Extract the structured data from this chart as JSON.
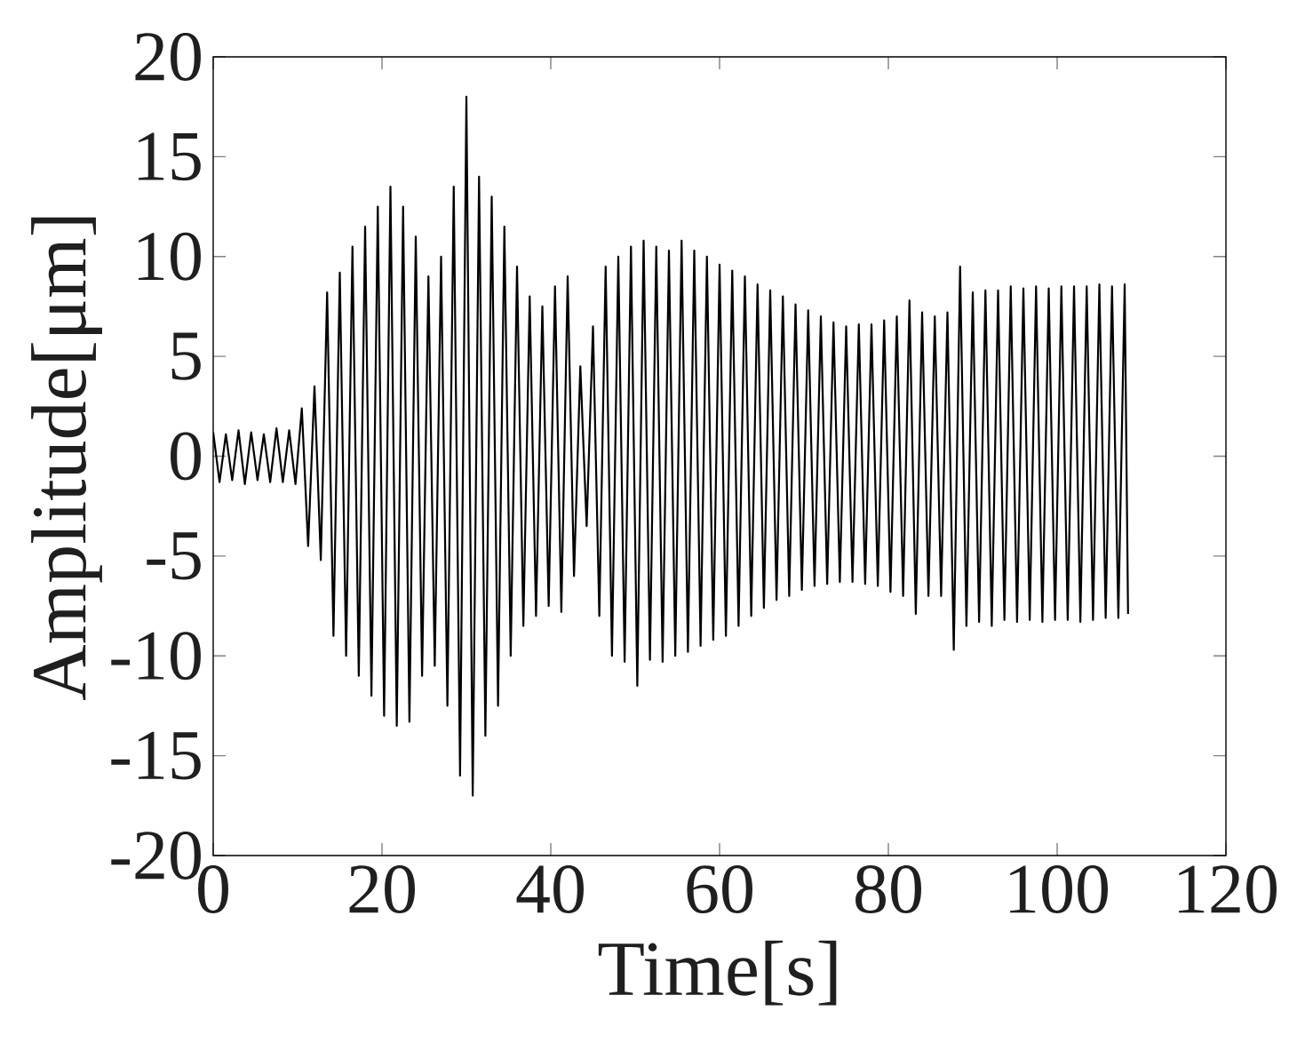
{
  "chart_data": {
    "type": "line",
    "xlabel": "Time[s]",
    "ylabel": "Amplitude[μm]",
    "xlim": [
      0,
      120
    ],
    "ylim": [
      -20,
      20
    ],
    "xticks": [
      0,
      20,
      40,
      60,
      80,
      100,
      120
    ],
    "yticks": [
      -20,
      -15,
      -10,
      -5,
      0,
      5,
      10,
      15,
      20
    ],
    "line_style": "solid",
    "series": [
      {
        "color": "#000000",
        "x": [
          0,
          0.75,
          1.5,
          2.25,
          3,
          3.75,
          4.5,
          5.25,
          6,
          6.75,
          7.5,
          8.25,
          9,
          9.75,
          10.5,
          11.25,
          12,
          12.75,
          13.5,
          14.25,
          15,
          15.75,
          16.5,
          17.25,
          18,
          18.75,
          19.5,
          20.25,
          21,
          21.75,
          22.5,
          23.25,
          24,
          24.75,
          25.5,
          26.25,
          27,
          27.75,
          28.5,
          29.25,
          30,
          30.75,
          31.5,
          32.25,
          33,
          33.75,
          34.5,
          35.25,
          36,
          36.75,
          37.5,
          38.25,
          39,
          39.75,
          40.5,
          41.25,
          42,
          42.75,
          43.5,
          44.25,
          45,
          45.75,
          46.5,
          47.25,
          48,
          48.75,
          49.5,
          50.25,
          51,
          51.75,
          52.5,
          53.25,
          54,
          54.75,
          55.5,
          56.25,
          57,
          57.75,
          58.5,
          59.25,
          60,
          60.75,
          61.5,
          62.25,
          63,
          63.75,
          64.5,
          65.25,
          66,
          66.75,
          67.5,
          68.25,
          69,
          69.75,
          70.5,
          71.25,
          72,
          72.75,
          73.5,
          74.25,
          75,
          75.75,
          76.5,
          77.25,
          78,
          78.75,
          79.5,
          80.25,
          81,
          81.75,
          82.5,
          83.25,
          84,
          84.75,
          85.5,
          86.25,
          87,
          87.75,
          88.5,
          89.25,
          90,
          90.75,
          91.5,
          92.25,
          93,
          93.75,
          94.5,
          95.25,
          96,
          96.75,
          97.5,
          98.25,
          99,
          99.75,
          100.5,
          101.25,
          102,
          102.75,
          103.5,
          104.25,
          105,
          105.75,
          106.5,
          107.25,
          108,
          108.4
        ],
        "values": [
          1.2,
          -1.3,
          1.1,
          -1.2,
          1.3,
          -1.4,
          1.2,
          -1.2,
          1.1,
          -1.3,
          1.4,
          -1.3,
          1.3,
          -1.4,
          2.4,
          -4.5,
          3.5,
          -5.2,
          8.2,
          -9.0,
          9.2,
          -10,
          10.5,
          -11,
          11.5,
          -12,
          12.5,
          -13,
          13.5,
          -13.5,
          12.5,
          -13.3,
          11,
          -11,
          9,
          -10.5,
          10,
          -12.5,
          13.5,
          -16,
          18,
          -17,
          14,
          -14,
          13,
          -12.5,
          11.5,
          -10,
          9.5,
          -8.5,
          8,
          -8,
          7.5,
          -7.5,
          8.5,
          -7.8,
          9,
          -6,
          4.5,
          -3.5,
          6.5,
          -8,
          9.5,
          -10,
          10,
          -10.3,
          10.5,
          -11.5,
          10.8,
          -10.2,
          10.5,
          -10.3,
          10.3,
          -10,
          10.8,
          -9.8,
          10.3,
          -9.5,
          10,
          -9.2,
          9.6,
          -9,
          9.3,
          -8.5,
          9,
          -8,
          8.6,
          -7.6,
          8.3,
          -7.2,
          8,
          -7,
          7.6,
          -6.7,
          7.3,
          -6.5,
          7,
          -6.4,
          6.7,
          -6.3,
          6.5,
          -6.3,
          6.6,
          -6.4,
          6.6,
          -6.5,
          6.8,
          -6.8,
          7,
          -7,
          7.8,
          -7.9,
          7.2,
          -7,
          7,
          -7,
          7.2,
          -9.7,
          9.5,
          -8.5,
          8.2,
          -8.3,
          8.3,
          -8.5,
          8.3,
          -8.2,
          8.5,
          -8.3,
          8.4,
          -8.2,
          8.5,
          -8.3,
          8.4,
          -8.2,
          8.5,
          -8.2,
          8.5,
          -8.3,
          8.5,
          -8.2,
          8.6,
          -8.1,
          8.5,
          -8.1,
          8.6,
          -7.9
        ]
      }
    ]
  }
}
